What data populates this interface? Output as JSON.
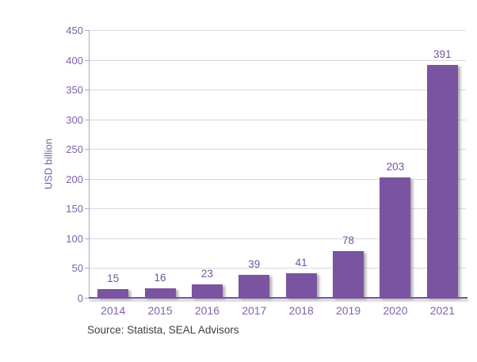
{
  "chart_data": {
    "type": "bar",
    "categories": [
      "2014",
      "2015",
      "2016",
      "2017",
      "2018",
      "2019",
      "2020",
      "2021"
    ],
    "values": [
      15,
      16,
      23,
      39,
      41,
      78,
      203,
      391
    ],
    "title": "",
    "xlabel": "",
    "ylabel": "USD billion",
    "ylim": [
      0,
      450
    ],
    "ytick_step": 50,
    "grid": true,
    "legend": false,
    "bar_color": "#7a53a1",
    "label_color": "#75539f",
    "axis_text_color": "#8063ab",
    "gridline_color": "#d9d9d9",
    "source": "Source: Statista, SEAL Advisors"
  }
}
